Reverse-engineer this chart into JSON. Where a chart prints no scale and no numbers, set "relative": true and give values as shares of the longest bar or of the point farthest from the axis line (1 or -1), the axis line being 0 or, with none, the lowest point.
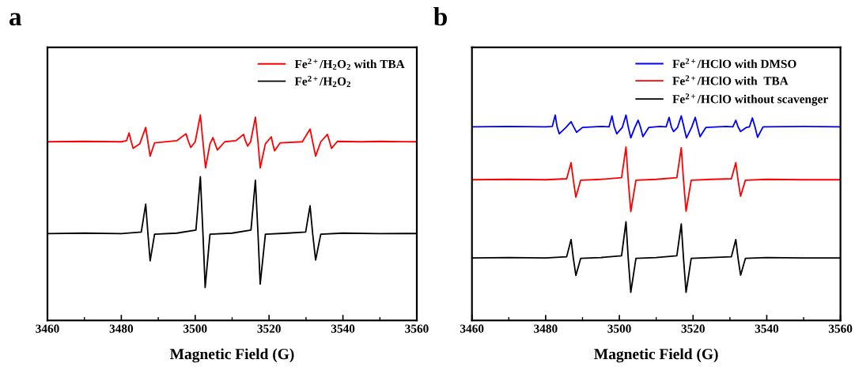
{
  "chart_data": [
    {
      "type": "line",
      "title": "a",
      "xlabel": "Magnetic Field (G)",
      "relative": true,
      "tick_labels": "x",
      "legend": "top right",
      "grid": false,
      "marker": "none",
      "line_style": "solid",
      "xlim": [
        3460,
        3560
      ],
      "xticks": [
        3460,
        {
          "value": 3470,
          "label": null
        },
        3480,
        {
          "value": 3490,
          "label": null
        },
        3500,
        {
          "value": 3510,
          "label": null
        },
        3520,
        {
          "value": 3530,
          "label": null
        },
        3540,
        {
          "value": 3550,
          "label": null
        },
        3560
      ],
      "series": [
        {
          "name": "Fe$^{2+}$/H$_{2}$O$_{2}$ with TBA",
          "color": "#ff0000",
          "x": [
            3460,
            3470,
            3480,
            3481.4,
            3482.1,
            3482.7,
            3483.2,
            3485,
            3486.6,
            3487.2,
            3487.8,
            3489,
            3495,
            3497.5,
            3498.2,
            3498.8,
            3500,
            3501.4,
            3502.1,
            3502.8,
            3504,
            3504.8,
            3505.4,
            3506,
            3508,
            3511,
            3513.1,
            3513.6,
            3514.2,
            3515,
            3516.3,
            3517,
            3517.6,
            3519,
            3520.6,
            3521,
            3521.5,
            3523,
            3529,
            3531.1,
            3531.8,
            3532.6,
            3534,
            3535.8,
            3536.4,
            3536.9,
            3538.5,
            3545,
            3550,
            3560
          ],
          "values": [
            0.87,
            0.872,
            0.87,
            0.875,
            0.913,
            0.87,
            0.838,
            0.86,
            0.94,
            0.87,
            0.8,
            0.865,
            0.875,
            0.909,
            0.87,
            0.842,
            0.87,
            1.0,
            0.87,
            0.743,
            0.86,
            0.89,
            0.86,
            0.83,
            0.87,
            0.875,
            0.906,
            0.875,
            0.849,
            0.87,
            0.99,
            0.87,
            0.743,
            0.86,
            0.894,
            0.86,
            0.826,
            0.865,
            0.87,
            0.932,
            0.87,
            0.8,
            0.87,
            0.906,
            0.87,
            0.838,
            0.872,
            0.87,
            0.872,
            0.87
          ]
        },
        {
          "name": "Fe$^{2+}$/H$_{2}$O$_{2}$",
          "color": "#000000",
          "x": [
            3460,
            3470,
            3480,
            3485.4,
            3486.6,
            3487.2,
            3487.8,
            3489,
            3495,
            3500.2,
            3501.4,
            3502.1,
            3502.7,
            3504,
            3510,
            3515.1,
            3516.3,
            3517,
            3517.6,
            3519,
            3525,
            3529.9,
            3531.1,
            3531.8,
            3532.6,
            3534,
            3540,
            3550,
            3560
          ],
          "values": [
            0.423,
            0.425,
            0.423,
            0.43,
            0.566,
            0.423,
            0.29,
            0.42,
            0.425,
            0.44,
            0.7,
            0.423,
            0.16,
            0.42,
            0.425,
            0.44,
            0.683,
            0.423,
            0.177,
            0.42,
            0.425,
            0.43,
            0.558,
            0.423,
            0.294,
            0.42,
            0.425,
            0.423,
            0.423
          ]
        }
      ]
    },
    {
      "type": "line",
      "title": "b",
      "xlabel": "Magnetic Field (G)",
      "relative": true,
      "tick_labels": "x",
      "legend": "top right",
      "grid": false,
      "marker": "none",
      "line_style": "solid",
      "xlim": [
        3460,
        3560
      ],
      "xticks": [
        3460,
        {
          "value": 3470,
          "label": null
        },
        3480,
        {
          "value": 3490,
          "label": null
        },
        3500,
        {
          "value": 3510,
          "label": null
        },
        3520,
        {
          "value": 3530,
          "label": null
        },
        3540,
        {
          "value": 3550,
          "label": null
        },
        3560
      ],
      "series": [
        {
          "name": "Fe$^{2+}$/HClO with DMSO",
          "color": "#0000ff",
          "x": [
            3460,
            3470,
            3480,
            3481.8,
            3482.6,
            3483.1,
            3483.7,
            3485.5,
            3486.9,
            3487.6,
            3488.4,
            3490,
            3495,
            3497.2,
            3498.0,
            3498.6,
            3499.3,
            3500.8,
            3501.8,
            3502.4,
            3503.1,
            3504.2,
            3505.1,
            3505.7,
            3506.4,
            3508,
            3511,
            3512.7,
            3513.5,
            3514.1,
            3514.7,
            3515.8,
            3516.8,
            3517.5,
            3518.2,
            3519.6,
            3520.6,
            3521.2,
            3521.9,
            3523.5,
            3529,
            3530.8,
            3531.6,
            3532.2,
            3532.9,
            3534.5,
            3535.3,
            3536.1,
            3536.8,
            3537.5,
            3539,
            3550,
            3560
          ],
          "values": [
            0.943,
            0.945,
            0.943,
            0.945,
            1.0,
            0.943,
            0.909,
            0.94,
            0.968,
            0.943,
            0.916,
            0.94,
            0.945,
            0.943,
            0.996,
            0.943,
            0.909,
            0.94,
            1.0,
            0.943,
            0.889,
            0.94,
            0.975,
            0.943,
            0.895,
            0.94,
            0.945,
            0.943,
            0.989,
            0.943,
            0.92,
            0.94,
            0.996,
            0.943,
            0.889,
            0.94,
            0.989,
            0.943,
            0.895,
            0.94,
            0.945,
            0.943,
            0.975,
            0.943,
            0.92,
            0.94,
            0.943,
            0.986,
            0.943,
            0.892,
            0.943,
            0.945,
            0.943
          ]
        },
        {
          "name": "Fe$^{2+}$/HClO with  TBA",
          "color": "#ff0000",
          "x": [
            3460,
            3470,
            3480,
            3485.7,
            3486.9,
            3487.5,
            3488.2,
            3489.5,
            3495,
            3500.6,
            3501.8,
            3502.4,
            3503.1,
            3504.5,
            3510,
            3515.6,
            3516.8,
            3517.4,
            3518.1,
            3519.5,
            3525,
            3530.4,
            3531.6,
            3532.2,
            3532.9,
            3534.2,
            3540,
            3550,
            3560
          ],
          "values": [
            0.685,
            0.687,
            0.685,
            0.69,
            0.768,
            0.685,
            0.6,
            0.683,
            0.687,
            0.695,
            0.844,
            0.685,
            0.53,
            0.683,
            0.687,
            0.695,
            0.841,
            0.685,
            0.532,
            0.683,
            0.687,
            0.69,
            0.768,
            0.685,
            0.605,
            0.683,
            0.687,
            0.685,
            0.685
          ]
        },
        {
          "name": "Fe$^{2+}$/HClO without scavenger",
          "color": "#000000",
          "x": [
            3460,
            3470,
            3480,
            3485.7,
            3486.9,
            3487.5,
            3488.2,
            3489.5,
            3495,
            3500.6,
            3501.8,
            3502.4,
            3503.1,
            3504.5,
            3510,
            3515.6,
            3516.8,
            3517.4,
            3518.1,
            3519.5,
            3525,
            3530.4,
            3531.6,
            3532.2,
            3532.9,
            3534.2,
            3540,
            3550,
            3560
          ],
          "values": [
            0.304,
            0.306,
            0.304,
            0.31,
            0.394,
            0.304,
            0.219,
            0.302,
            0.306,
            0.315,
            0.48,
            0.304,
            0.137,
            0.302,
            0.306,
            0.315,
            0.47,
            0.304,
            0.137,
            0.302,
            0.306,
            0.31,
            0.394,
            0.304,
            0.22,
            0.302,
            0.306,
            0.304,
            0.304
          ]
        }
      ]
    }
  ]
}
